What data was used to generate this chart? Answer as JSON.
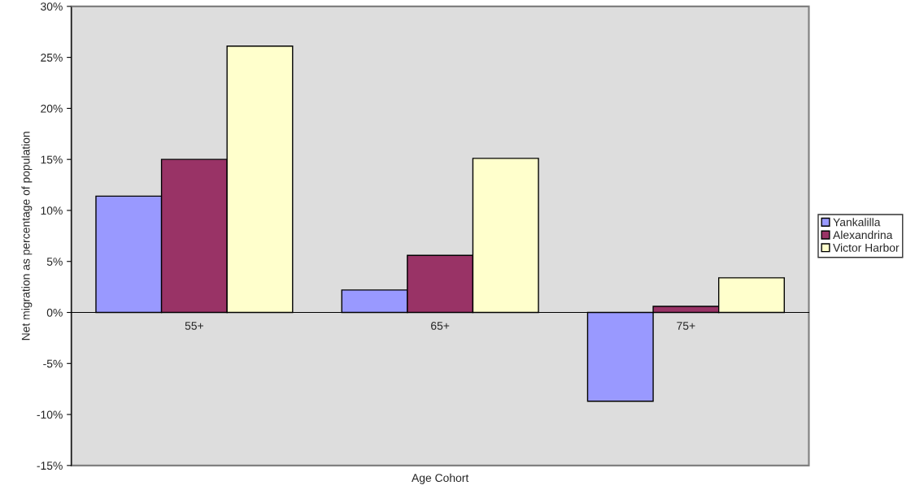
{
  "chart_data": {
    "type": "bar",
    "xlabel": "Age Cohort",
    "ylabel": "Net migration as percentage of population",
    "categories": [
      "55+",
      "65+",
      "75+"
    ],
    "series": [
      {
        "name": "Yankalilla",
        "color": "#9999ff",
        "values": [
          11.4,
          2.2,
          -8.7
        ]
      },
      {
        "name": "Alexandrina",
        "color": "#993366",
        "values": [
          15.0,
          5.6,
          0.6
        ]
      },
      {
        "name": "Victor Harbor",
        "color": "#ffffcc",
        "values": [
          26.1,
          15.1,
          3.4
        ]
      }
    ],
    "ylim": [
      -15,
      30
    ],
    "yticks": [
      {
        "value": -15,
        "label": "-15%"
      },
      {
        "value": -10,
        "label": "-10%"
      },
      {
        "value": -5,
        "label": "-5%"
      },
      {
        "value": 0,
        "label": "0%"
      },
      {
        "value": 5,
        "label": "5%"
      },
      {
        "value": 10,
        "label": "10%"
      },
      {
        "value": 15,
        "label": "15%"
      },
      {
        "value": 20,
        "label": "20%"
      },
      {
        "value": 25,
        "label": "25%"
      },
      {
        "value": 30,
        "label": "30%"
      }
    ],
    "grid": false,
    "legend": "right"
  }
}
